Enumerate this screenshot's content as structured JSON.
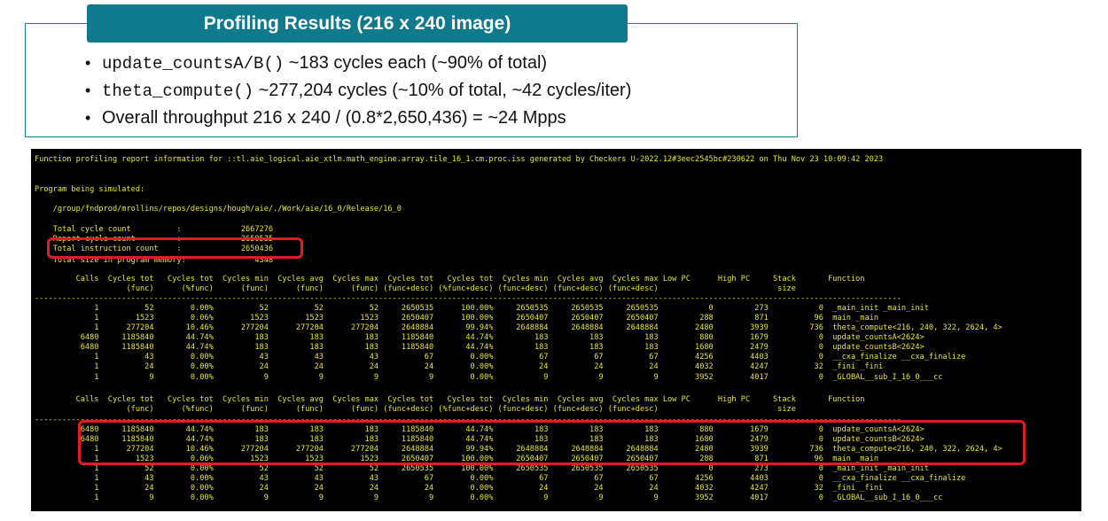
{
  "slide": {
    "title": "Profiling Results (216 x 240 image)",
    "bullets": [
      {
        "mono": "update_countsA/B()",
        "text": " ~183 cycles each (~90% of total)"
      },
      {
        "mono": "theta_compute()",
        "text": " ~277,204 cycles (~10% of total, ~42 cycles/iter)"
      },
      {
        "mono": "",
        "text": "Overall throughput 216 x 240 / (0.8*2,650,436) = ~24 Mpps"
      }
    ]
  },
  "terminal": {
    "lines": [
      "Function profiling report information for ::tl.aie_logical.aie_xtlm.math_engine.array.tile_16_1.cm.proc.iss generated by Checkers U-2022.12#3eec2545bc#230622 on Thu Nov 23 10:09:42 2023",
      "",
      "",
      "Program being simulated:",
      "",
      "",
      "    /group/fndprod/mrollins/repos/designs/hough/aie/./Work/aie/16_0/Release/16_0",
      "",
      "",
      "    Total cycle count          :             2667276",
      "    Report cycle count         :             2650535",
      "    Total instruction count    :             2650436",
      "    Total size in program memory:               4348",
      "",
      "",
      "         Calls  Cycles tot   Cycles tot  Cycles min  Cycles avg  Cycles max  Cycles tot   Cycles tot  Cycles min  Cycles avg  Cycles max Low PC      High PC     Stack       Function",
      "                    (func)      (%func)      (func)      (func)      (func) (func+desc) (%func+desc) (func+desc) (func+desc) (func+desc)                          size",
      "---------------------------------------------------------------------------------------------------------------------------------------------------------------------------------------------",
      "             1          52        0.00%          52          52          52     2650535      100.00%     2650535     2650535     2650535           0         273           0  _main_init _main_init",
      "             1        1523        0.06%        1523        1523        1523     2650407      100.00%     2650407     2650407     2650407         288         871          96  main _main",
      "             1      277204       10.46%      277204      277204      277204     2648884       99.94%     2648884     2648884     2648884        2480        3939         736  theta_compute<216, 240, 322, 2624, 4>",
      "          6480     1185840       44.74%         183         183         183     1185840       44.74%         183         183         183         880        1679           0  update_countsA<2624>",
      "          6480     1185840       44.74%         183         183         183     1185840       44.74%         183         183         183        1680        2479           0  update_countsB<2624>",
      "             1          43        0.00%          43          43          43          67        0.00%          67          67          67        4256        4403           0  __cxa_finalize __cxa_finalize",
      "             1          24        0.00%          24          24          24          24        0.00%          24          24          24        4032        4247          32  _fini _fini",
      "             1           9        0.00%           9           9           9           9        0.00%           9           9           9        3952        4017           0  _GLOBAL__sub_I_16_0___cc",
      "",
      "",
      "         Calls  Cycles tot   Cycles tot  Cycles min  Cycles avg  Cycles max  Cycles tot   Cycles tot  Cycles min  Cycles avg  Cycles max Low PC      High PC     Stack       Function",
      "                    (func)      (%func)      (func)      (func)      (func) (func+desc) (%func+desc) (func+desc) (func+desc) (func+desc)                          size",
      "---------------------------------------------------------------------------------------------------------------------------------------------------------------------------------------------",
      "          6480     1185840       44.74%         183         183         183     1185840       44.74%         183         183         183         880        1679           0  update_countsA<2624>",
      "          6480     1185840       44.74%         183         183         183     1185840       44.74%         183         183         183        1680        2479           0  update_countsB<2624>",
      "             1      277204       10.46%      277204      277204      277204     2648884       99.94%     2648884     2648884     2648884        2480        3939         736  theta_compute<216, 240, 322, 2624, 4>",
      "             1        1523        0.06%        1523        1523        1523     2650407      100.00%     2650407     2650407     2650407         288         871          96  main _main",
      "             1          52        0.00%          52          52          52     2650535      100.00%     2650535     2650535     2650535           0         273           0  _main_init _main_init",
      "             1          43        0.00%          43          43          43          67        0.00%          67          67          67        4256        4403           0  __cxa_finalize __cxa_finalize",
      "             1          24        0.00%          24          24          24          24        0.00%          24          24          24        4032        4247          32  _fini _fini",
      "             1           9        0.00%           9           9           9           9        0.00%           9           9           9        3952        4017           0  _GLOBAL__sub_I_16_0___cc"
    ]
  },
  "colors": {
    "banner": "#0f7a8c",
    "box_border": "#1a7f8e",
    "terminal_bg": "#000000",
    "terminal_text": "#e6e633",
    "highlight": "#e31b23"
  }
}
